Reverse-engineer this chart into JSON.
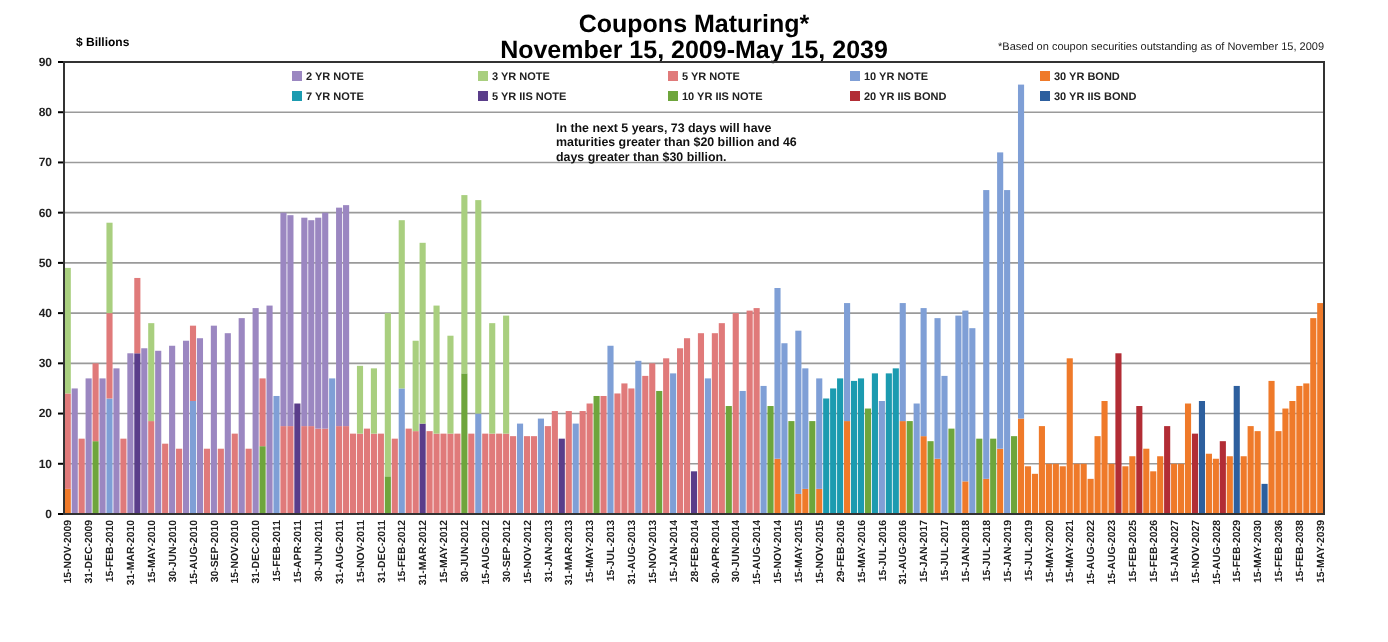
{
  "chart_data": {
    "type": "bar",
    "stacked": true,
    "title": "Coupons Maturing*",
    "subtitle": "November 15, 2009-May 15, 2039",
    "ylabel": "$ Billions",
    "annotations": [
      "*Based on coupon securities outstanding as of November 15, 2009",
      "In the next 5 years, 73 days will have maturities greater than $20 billion and 46 days greater than $30 billion."
    ],
    "ylim": [
      0,
      90
    ],
    "yticks": [
      0,
      10,
      20,
      30,
      40,
      50,
      60,
      70,
      80,
      90
    ],
    "grid": "y",
    "legend": "top",
    "categories": [
      "15-NOV-2009",
      null,
      null,
      "31-DEC-2009",
      null,
      null,
      "15-FEB-2010",
      null,
      null,
      "31-MAR-2010",
      null,
      null,
      "15-MAY-2010",
      null,
      null,
      "30-JUN-2010",
      null,
      null,
      "15-AUG-2010",
      null,
      null,
      "30-SEP-2010",
      null,
      null,
      "15-NOV-2010",
      null,
      null,
      "31-DEC-2010",
      null,
      null,
      "15-FEB-2011",
      null,
      null,
      "15-APR-2011",
      null,
      null,
      "30-JUN-2011",
      null,
      null,
      "31-AUG-2011",
      null,
      null,
      "15-NOV-2011",
      null,
      null,
      "31-DEC-2011",
      null,
      null,
      "15-FEB-2012",
      null,
      null,
      "31-MAR-2012",
      null,
      null,
      "15-MAY-2012",
      null,
      null,
      "30-JUN-2012",
      null,
      null,
      "15-AUG-2012",
      null,
      null,
      "30-SEP-2012",
      null,
      null,
      "15-NOV-2012",
      null,
      null,
      "31-JAN-2013",
      null,
      null,
      "31-MAR-2013",
      null,
      null,
      "15-MAY-2013",
      null,
      null,
      "15-JUL-2013",
      null,
      null,
      "31-AUG-2013",
      null,
      null,
      "15-NOV-2013",
      null,
      null,
      "15-JAN-2014",
      null,
      null,
      "28-FEB-2014",
      null,
      null,
      "30-APR-2014",
      null,
      null,
      "30-JUN-2014",
      null,
      null,
      "15-AUG-2014",
      null,
      null,
      "15-NOV-2014",
      null,
      null,
      "15-MAY-2015",
      null,
      null,
      "15-NOV-2015",
      null,
      null,
      "29-FEB-2016",
      null,
      null,
      "15-MAY-2016",
      null,
      null,
      "15-JUL-2016",
      null,
      null,
      "31-AUG-2016",
      null,
      null,
      "15-JAN-2017",
      null,
      null,
      "15-JUL-2017",
      null,
      null,
      "15-JAN-2018",
      null,
      null,
      "15-JUL-2018",
      null,
      null,
      "15-JAN-2019",
      null,
      null,
      "15-JUL-2019",
      null,
      null,
      "15-MAY-2020",
      null,
      null,
      "15-MAY-2021",
      null,
      null,
      "15-AUG-2022",
      null,
      null,
      "15-AUG-2023",
      null,
      null,
      "15-FEB-2025",
      null,
      null,
      "15-FEB-2026",
      null,
      null,
      "15-JAN-2027",
      null,
      null,
      "15-NOV-2027",
      null,
      null,
      "15-AUG-2028",
      null,
      null,
      "15-FEB-2029",
      null,
      null,
      "15-MAY-2030",
      null,
      null,
      "15-FEB-2036",
      null,
      null,
      "15-FEB-2038",
      null,
      null,
      "15-MAY-2039"
    ],
    "series": [
      {
        "name": "30 YR IIS BOND",
        "color": "#2d5f9e",
        "values": [
          null,
          null,
          null,
          null,
          null,
          null,
          null,
          null,
          null,
          null,
          null,
          null,
          null,
          null,
          null,
          null,
          null,
          null,
          null,
          null,
          null,
          null,
          null,
          null,
          null,
          null,
          null,
          null,
          null,
          null,
          null,
          null,
          null,
          null,
          null,
          null,
          null,
          null,
          null,
          null,
          null,
          null,
          null,
          null,
          null,
          null,
          null,
          null,
          null,
          null,
          null,
          null,
          null,
          null,
          null,
          null,
          null,
          null,
          null,
          null,
          null,
          null,
          null,
          null,
          null,
          null,
          null,
          null,
          null,
          null,
          null,
          null,
          null,
          null,
          null,
          null,
          null,
          null,
          null,
          null,
          null,
          null,
          null,
          null,
          null,
          null,
          null,
          null,
          null,
          null,
          null,
          null,
          null,
          null,
          null,
          null,
          null,
          null,
          null,
          null,
          null,
          null,
          null,
          null,
          null,
          null,
          null,
          null,
          null,
          null,
          null,
          null,
          null,
          null,
          null,
          null,
          null,
          null,
          null,
          null,
          null,
          null,
          null,
          null,
          null,
          null,
          null,
          null,
          null,
          null,
          null,
          null,
          null,
          null,
          null,
          null,
          null,
          null,
          null,
          null,
          null,
          null,
          null,
          null,
          null,
          null,
          null,
          null,
          null,
          null,
          null,
          null,
          null,
          null,
          null,
          null,
          null,
          null,
          null,
          null,
          null,
          null,
          null,
          22.5,
          null,
          null,
          null,
          null,
          25.5,
          null,
          null,
          null,
          6,
          null,
          null,
          null,
          null,
          null,
          null,
          null,
          null
        ]
      },
      {
        "name": "20 YR IIS BOND",
        "color": "#b22d35",
        "values": [
          null,
          null,
          null,
          null,
          null,
          null,
          null,
          null,
          null,
          null,
          null,
          null,
          null,
          null,
          null,
          null,
          null,
          null,
          null,
          null,
          null,
          null,
          null,
          null,
          null,
          null,
          null,
          null,
          null,
          null,
          null,
          null,
          null,
          null,
          null,
          null,
          null,
          null,
          null,
          null,
          null,
          null,
          null,
          null,
          null,
          null,
          null,
          null,
          null,
          null,
          null,
          null,
          null,
          null,
          null,
          null,
          null,
          null,
          null,
          null,
          null,
          null,
          null,
          null,
          null,
          null,
          null,
          null,
          null,
          null,
          null,
          null,
          null,
          null,
          null,
          null,
          null,
          null,
          null,
          null,
          null,
          null,
          null,
          null,
          null,
          null,
          null,
          null,
          null,
          null,
          null,
          null,
          null,
          null,
          null,
          null,
          null,
          null,
          null,
          null,
          null,
          null,
          null,
          null,
          null,
          null,
          null,
          null,
          null,
          null,
          null,
          null,
          null,
          null,
          null,
          null,
          null,
          null,
          null,
          null,
          null,
          null,
          null,
          null,
          null,
          null,
          null,
          null,
          null,
          null,
          null,
          null,
          null,
          null,
          null,
          null,
          null,
          null,
          null,
          null,
          null,
          null,
          null,
          null,
          null,
          null,
          null,
          null,
          null,
          null,
          null,
          32,
          null,
          null,
          21.5,
          null,
          null,
          null,
          17.5,
          null,
          null,
          null,
          16,
          null,
          null,
          null,
          14.5,
          null,
          null,
          null,
          null,
          null,
          null,
          null,
          null,
          null,
          null,
          null,
          null,
          null,
          null
        ]
      },
      {
        "name": "10 YR IIS NOTE",
        "color": "#6ea53c",
        "values": [
          null,
          null,
          null,
          null,
          14.5,
          null,
          null,
          null,
          null,
          null,
          null,
          null,
          null,
          null,
          null,
          null,
          null,
          null,
          null,
          null,
          null,
          null,
          null,
          null,
          null,
          null,
          null,
          null,
          13.5,
          null,
          null,
          null,
          null,
          null,
          null,
          null,
          null,
          null,
          null,
          null,
          null,
          null,
          null,
          null,
          null,
          null,
          7.5,
          null,
          null,
          null,
          null,
          null,
          null,
          null,
          null,
          null,
          null,
          28,
          null,
          null,
          null,
          null,
          null,
          null,
          null,
          null,
          null,
          null,
          null,
          null,
          null,
          null,
          null,
          null,
          null,
          null,
          23.5,
          null,
          null,
          null,
          null,
          null,
          null,
          null,
          null,
          24.5,
          null,
          null,
          null,
          null,
          null,
          null,
          null,
          null,
          null,
          21.5,
          null,
          null,
          null,
          null,
          null,
          21.5,
          null,
          null,
          18.5,
          null,
          null,
          18.5,
          null,
          null,
          null,
          null,
          null,
          null,
          null,
          21,
          null,
          null,
          null,
          null,
          null,
          18.5,
          null,
          null,
          14.5,
          null,
          null,
          17,
          null,
          null,
          null,
          15,
          null,
          15,
          null,
          null,
          15.5,
          null,
          null,
          null,
          null,
          null,
          null,
          null,
          null,
          null,
          null,
          null,
          null,
          null,
          null,
          null,
          null,
          null,
          null,
          null,
          null,
          null,
          null,
          null,
          null,
          null,
          null,
          null,
          null,
          null,
          null,
          null,
          null,
          null,
          null,
          null,
          null,
          null,
          null,
          null,
          null,
          null,
          null,
          null,
          null
        ]
      },
      {
        "name": "5 YR IIS NOTE",
        "color": "#5a3d8a",
        "values": [
          null,
          null,
          null,
          null,
          null,
          null,
          null,
          null,
          null,
          null,
          32,
          null,
          null,
          null,
          null,
          null,
          null,
          null,
          null,
          null,
          null,
          null,
          null,
          null,
          null,
          null,
          null,
          null,
          null,
          null,
          null,
          null,
          null,
          22,
          null,
          null,
          null,
          null,
          null,
          null,
          null,
          null,
          null,
          null,
          null,
          null,
          null,
          null,
          null,
          null,
          null,
          18,
          null,
          null,
          null,
          null,
          null,
          null,
          null,
          null,
          null,
          null,
          null,
          null,
          null,
          null,
          null,
          null,
          null,
          null,
          null,
          15,
          null,
          null,
          null,
          null,
          null,
          null,
          null,
          null,
          null,
          null,
          null,
          null,
          null,
          null,
          null,
          null,
          null,
          null,
          8.5,
          null,
          null,
          null,
          null,
          null,
          null,
          null,
          null,
          null,
          null,
          null,
          null,
          null,
          null,
          null,
          null,
          null,
          null,
          null,
          null,
          null,
          null,
          null,
          null,
          null,
          null,
          null,
          null,
          null,
          null,
          null,
          null,
          null,
          null,
          null,
          null,
          null,
          null,
          null,
          null,
          null,
          null,
          null,
          null,
          null,
          null,
          null,
          null,
          null,
          null,
          null,
          null,
          null,
          null,
          null,
          null,
          null,
          null,
          null,
          null,
          null,
          null,
          null,
          null,
          null,
          null,
          null,
          null,
          null,
          null,
          null,
          null,
          null,
          null,
          null,
          null,
          null,
          null,
          null,
          null,
          null,
          null,
          null,
          null,
          null,
          null,
          null,
          null,
          null,
          null
        ]
      },
      {
        "name": "7 YR NOTE",
        "color": "#1c9bb0",
        "values": [
          null,
          null,
          null,
          null,
          null,
          null,
          null,
          null,
          null,
          null,
          null,
          null,
          null,
          null,
          null,
          null,
          null,
          null,
          null,
          null,
          null,
          null,
          null,
          null,
          null,
          null,
          null,
          null,
          null,
          null,
          null,
          null,
          null,
          null,
          null,
          null,
          null,
          null,
          null,
          null,
          null,
          null,
          null,
          null,
          null,
          null,
          null,
          null,
          null,
          null,
          null,
          null,
          null,
          null,
          null,
          null,
          null,
          null,
          null,
          null,
          null,
          null,
          null,
          null,
          null,
          null,
          null,
          null,
          null,
          null,
          null,
          null,
          null,
          null,
          null,
          null,
          null,
          null,
          null,
          null,
          null,
          null,
          null,
          null,
          null,
          null,
          null,
          null,
          null,
          null,
          null,
          null,
          null,
          null,
          null,
          null,
          null,
          null,
          null,
          null,
          null,
          null,
          null,
          null,
          null,
          null,
          null,
          null,
          null,
          23,
          25,
          27,
          null,
          26.5,
          27,
          null,
          28,
          null,
          28,
          29,
          null,
          null,
          null,
          null,
          null,
          null,
          null,
          null,
          null,
          null,
          null,
          null,
          null,
          null,
          null,
          null,
          null,
          null,
          null,
          null,
          null,
          null,
          null,
          null,
          null,
          null,
          null,
          null,
          null,
          null,
          null,
          null,
          null,
          null,
          null,
          null,
          null,
          null,
          null,
          null,
          null,
          null,
          null,
          null,
          null,
          null,
          null,
          null,
          null,
          null,
          null,
          null,
          null,
          null,
          null,
          null,
          null,
          null,
          null,
          null,
          null
        ]
      },
      {
        "name": "30 YR BOND",
        "color": "#ef7a2a",
        "values": [
          5,
          null,
          null,
          null,
          null,
          null,
          null,
          null,
          null,
          null,
          null,
          null,
          null,
          null,
          null,
          null,
          null,
          null,
          null,
          null,
          null,
          null,
          null,
          null,
          null,
          null,
          null,
          null,
          null,
          null,
          null,
          null,
          null,
          null,
          null,
          null,
          null,
          null,
          null,
          null,
          null,
          null,
          null,
          null,
          null,
          null,
          null,
          null,
          null,
          null,
          null,
          null,
          null,
          null,
          null,
          null,
          null,
          null,
          null,
          null,
          null,
          null,
          null,
          null,
          null,
          null,
          null,
          null,
          null,
          null,
          null,
          null,
          null,
          null,
          null,
          null,
          null,
          null,
          null,
          null,
          null,
          null,
          null,
          null,
          null,
          null,
          null,
          null,
          null,
          null,
          null,
          null,
          null,
          null,
          null,
          null,
          null,
          null,
          null,
          null,
          null,
          null,
          11,
          null,
          null,
          4,
          5,
          null,
          5,
          null,
          null,
          null,
          18.5,
          null,
          null,
          null,
          null,
          null,
          null,
          null,
          18.5,
          null,
          null,
          15.5,
          null,
          11,
          null,
          null,
          null,
          6.5,
          null,
          null,
          7,
          null,
          13,
          null,
          null,
          19,
          9.5,
          8,
          17.5,
          10,
          10,
          9.5,
          31,
          10,
          10,
          7,
          15.5,
          22.5,
          10,
          null,
          9.5,
          11.5,
          null,
          13,
          8.5,
          11.5,
          null,
          10,
          10,
          22,
          null,
          null,
          12,
          11,
          null,
          11.5,
          null,
          11.5,
          17.5,
          16.5,
          null,
          26.5,
          16.5,
          21,
          22.5,
          25.5,
          26,
          39,
          42
        ]
      },
      {
        "name": "10 YR NOTE",
        "color": "#7f9fd6",
        "values": [
          null,
          null,
          null,
          null,
          null,
          null,
          23,
          null,
          null,
          null,
          null,
          null,
          null,
          null,
          null,
          null,
          null,
          null,
          22.5,
          null,
          null,
          null,
          null,
          null,
          null,
          null,
          null,
          null,
          null,
          null,
          23.5,
          null,
          null,
          null,
          null,
          null,
          null,
          null,
          27,
          null,
          null,
          null,
          null,
          null,
          null,
          null,
          null,
          null,
          25,
          null,
          null,
          null,
          null,
          null,
          null,
          null,
          null,
          null,
          null,
          20,
          null,
          null,
          null,
          null,
          null,
          18,
          null,
          null,
          19,
          null,
          null,
          null,
          null,
          18,
          null,
          null,
          null,
          null,
          33.5,
          null,
          null,
          null,
          30.5,
          null,
          null,
          null,
          null,
          28,
          null,
          null,
          null,
          null,
          27,
          null,
          null,
          null,
          null,
          24.5,
          null,
          null,
          25.5,
          null,
          34,
          34,
          null,
          32.5,
          24,
          null,
          22,
          null,
          null,
          null,
          23.5,
          null,
          null,
          null,
          null,
          22.5,
          null,
          null,
          23.5,
          null,
          22,
          25.5,
          null,
          28,
          27.5,
          null,
          39.5,
          34,
          37,
          null,
          57.5,
          null,
          59,
          64.5,
          null,
          66.5,
          null,
          null,
          null,
          null,
          null,
          null,
          null,
          null,
          null,
          null,
          null,
          null,
          null,
          null,
          null,
          null,
          null,
          null,
          null,
          null,
          null,
          null,
          null,
          null,
          null,
          null,
          null,
          null,
          null,
          null,
          null,
          null,
          null,
          null,
          null,
          null,
          null,
          null,
          null,
          null,
          null,
          null,
          null
        ]
      },
      {
        "name": "5 YR NOTE",
        "color": "#e07a7a",
        "values": [
          19,
          null,
          15,
          null,
          15.5,
          null,
          17,
          null,
          15,
          null,
          15,
          null,
          18.5,
          null,
          14,
          null,
          13,
          null,
          15,
          null,
          13,
          null,
          13,
          null,
          16,
          null,
          13,
          null,
          13.5,
          null,
          null,
          17.5,
          17.5,
          null,
          17.5,
          17.5,
          17,
          17,
          null,
          17.5,
          17.5,
          16,
          16,
          17,
          16,
          16,
          null,
          15,
          null,
          17,
          16.5,
          null,
          16.5,
          16,
          16,
          16,
          16,
          null,
          16,
          null,
          16,
          16,
          16,
          16,
          15.5,
          null,
          15.5,
          15.5,
          null,
          17.5,
          20.5,
          null,
          20.5,
          null,
          20.5,
          22,
          null,
          23.5,
          null,
          24,
          26,
          25,
          null,
          27.5,
          30,
          null,
          31,
          null,
          33,
          35,
          null,
          36,
          null,
          36,
          38,
          null,
          40,
          null,
          40.5,
          41,
          null,
          null,
          null,
          null,
          null,
          null,
          null,
          null,
          null,
          null,
          null,
          null,
          null,
          null,
          null,
          null,
          null,
          null,
          null,
          null,
          null,
          null,
          null,
          null,
          null,
          null,
          null,
          null,
          null,
          null,
          null,
          null,
          null,
          null,
          null,
          null,
          null,
          null,
          null,
          null,
          null,
          null,
          null,
          null,
          null,
          null,
          null,
          null,
          null,
          null,
          null,
          null,
          null,
          null,
          null,
          null,
          null,
          null,
          null,
          null,
          null,
          null,
          null,
          null,
          null,
          null,
          null,
          null,
          null,
          null,
          null,
          null,
          null,
          null,
          null,
          null,
          null,
          null,
          null,
          null,
          null
        ]
      },
      {
        "name": "3 YR NOTE",
        "color": "#a9cf7f",
        "values": [
          25,
          null,
          null,
          null,
          null,
          null,
          18,
          null,
          null,
          null,
          null,
          null,
          19.5,
          null,
          null,
          null,
          null,
          null,
          null,
          null,
          null,
          null,
          null,
          null,
          null,
          null,
          null,
          null,
          null,
          null,
          null,
          null,
          null,
          null,
          null,
          null,
          null,
          null,
          null,
          null,
          null,
          null,
          13.5,
          null,
          13,
          null,
          32.5,
          null,
          33.5,
          null,
          18,
          36,
          null,
          25.5,
          null,
          19.5,
          null,
          35.5,
          null,
          42.5,
          null,
          22,
          null,
          23.5,
          null,
          null,
          null,
          null,
          null,
          null,
          null,
          null,
          null,
          null,
          null,
          null,
          null,
          null,
          null,
          null,
          null,
          null,
          null,
          null,
          null,
          null,
          null,
          null,
          null,
          null,
          null,
          null,
          null,
          null,
          null,
          null,
          null,
          null,
          null,
          null,
          null,
          null,
          null,
          null,
          null,
          null,
          null,
          null,
          null,
          null,
          null,
          null,
          null,
          null,
          null,
          null,
          null,
          null,
          null,
          null,
          null,
          null,
          null,
          null,
          null,
          null,
          null,
          null,
          null,
          null,
          null,
          null,
          null,
          null,
          null,
          null,
          null,
          null,
          null,
          null,
          null,
          null,
          null,
          null,
          null,
          null,
          null,
          null,
          null,
          null,
          null,
          null,
          null,
          null,
          null,
          null,
          null,
          null,
          null,
          null,
          null,
          null,
          null,
          null,
          null,
          null,
          null,
          null,
          null,
          null,
          null,
          null,
          null,
          null,
          null,
          null,
          null,
          null,
          null,
          null,
          null
        ]
      },
      {
        "name": "2 YR NOTE",
        "color": "#9b87c1",
        "values": [
          null,
          25,
          null,
          27,
          null,
          27,
          null,
          29,
          null,
          32,
          null,
          33,
          null,
          32.5,
          null,
          33.5,
          null,
          34.5,
          null,
          35,
          null,
          37.5,
          null,
          36,
          null,
          39,
          null,
          41,
          null,
          41.5,
          null,
          42.5,
          42,
          null,
          41.5,
          41,
          42,
          43,
          null,
          43.5,
          44,
          null,
          null,
          null,
          null,
          null,
          null,
          null,
          null,
          null,
          null,
          null,
          null,
          null,
          null,
          null,
          null,
          null,
          null,
          null,
          null,
          null,
          null,
          null,
          null,
          null,
          null,
          null,
          null,
          null,
          null,
          null,
          null,
          null,
          null,
          null,
          null,
          null,
          null,
          null,
          null,
          null,
          null,
          null,
          null,
          null,
          null,
          null,
          null,
          null,
          null,
          null,
          null,
          null,
          null,
          null,
          null,
          null,
          null,
          null,
          null,
          null,
          null,
          null,
          null,
          null,
          null,
          null,
          null,
          null,
          null,
          null,
          null,
          null,
          null,
          null,
          null,
          null,
          null,
          null,
          null,
          null,
          null,
          null,
          null,
          null,
          null,
          null,
          null,
          null,
          null,
          null,
          null,
          null,
          null,
          null,
          null,
          null,
          null,
          null,
          null,
          null,
          null,
          null,
          null,
          null,
          null,
          null,
          null,
          null,
          null,
          null,
          null,
          null,
          null,
          null,
          null,
          null,
          null,
          null,
          null,
          null,
          null,
          null,
          null,
          null,
          null,
          null,
          null,
          null,
          null,
          null,
          null,
          null,
          null,
          null,
          null,
          null,
          null,
          null,
          null
        ]
      }
    ]
  }
}
